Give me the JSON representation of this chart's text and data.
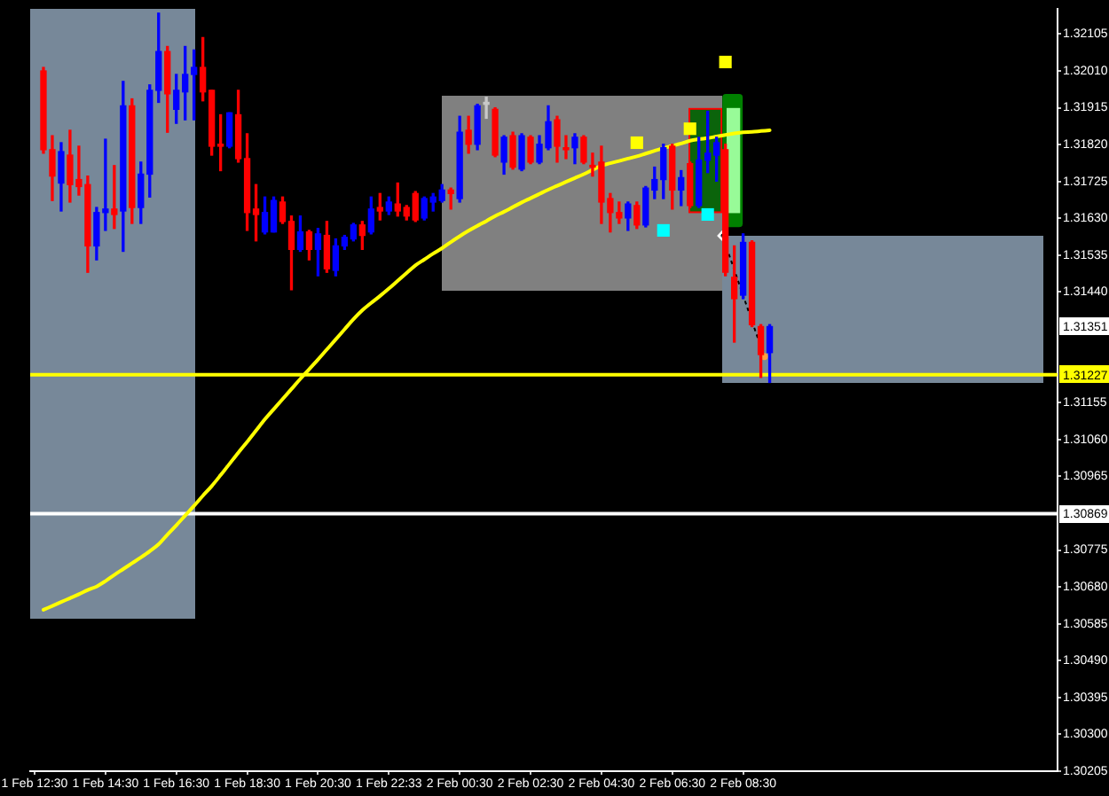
{
  "chart_data": {
    "type": "candlestick",
    "categories": [
      "1 Feb 12:30",
      null,
      null,
      null,
      null,
      null,
      null,
      null,
      "1 Feb 14:30",
      null,
      null,
      null,
      null,
      null,
      null,
      null,
      "1 Feb 16:30",
      null,
      null,
      null,
      null,
      null,
      null,
      null,
      "1 Feb 18:30",
      null,
      null,
      null,
      null,
      null,
      null,
      null,
      "1 Feb 20:30",
      null,
      null,
      null,
      null,
      null,
      null,
      null,
      "1 Feb 22:33",
      null,
      null,
      null,
      null,
      null,
      null,
      null,
      "2 Feb 00:30",
      null,
      null,
      null,
      null,
      null,
      null,
      null,
      "2 Feb 02:30",
      null,
      null,
      null,
      null,
      null,
      null,
      null,
      "2 Feb 04:30",
      null,
      null,
      null,
      null,
      null,
      null,
      null,
      "2 Feb 06:30",
      null,
      null,
      null,
      null,
      null,
      null,
      null,
      "2 Feb 08:30",
      null,
      null,
      null,
      null,
      null,
      null,
      null,
      null,
      null,
      null,
      null,
      null,
      null,
      null,
      null,
      null,
      null,
      null,
      null,
      null,
      null,
      null,
      null,
      null,
      null,
      null,
      null,
      null,
      null,
      null,
      null,
      null,
      null,
      null,
      null
    ],
    "ohlc": [
      null,
      [
        1.3201,
        1.32019,
        1.31798,
        1.31807
      ],
      [
        1.31807,
        1.31843,
        1.31676,
        1.31739
      ],
      [
        1.31721,
        1.31825,
        1.31649,
        1.31802
      ],
      [
        1.31793,
        1.31857,
        1.31672,
        1.31717
      ],
      [
        1.3173,
        1.31816,
        1.3169,
        1.31712
      ],
      [
        1.31717,
        1.31739,
        1.31491,
        1.31559
      ],
      [
        1.31559,
        1.31658,
        1.31523,
        1.31645
      ],
      [
        1.31645,
        1.31834,
        1.31599,
        1.31654
      ],
      [
        1.31654,
        1.31766,
        1.31604,
        1.3164
      ],
      [
        1.31649,
        1.31983,
        1.31545,
        1.3192
      ],
      [
        1.3192,
        1.31938,
        1.31617,
        1.31658
      ],
      [
        1.31658,
        1.31775,
        1.31617,
        1.31744
      ],
      [
        1.31744,
        1.31974,
        1.31685,
        1.3196
      ],
      [
        1.3196,
        1.32159,
        1.31929,
        1.3206
      ],
      [
        1.3206,
        1.32073,
        1.31852,
        1.31951
      ],
      [
        1.31911,
        1.32001,
        1.31875,
        1.3196
      ],
      [
        1.31956,
        1.32073,
        1.31884,
        1.32001
      ],
      [
        1.32001,
        1.32064,
        1.31884,
        1.32019
      ],
      [
        1.32019,
        1.32096,
        1.31933,
        1.31956
      ],
      [
        1.3196,
        1.3196,
        1.31793,
        1.31816
      ],
      [
        1.31821,
        1.31897,
        1.31753,
        1.31816
      ],
      [
        1.31816,
        1.31902,
        1.31812,
        1.31902
      ],
      [
        1.31897,
        1.3196,
        1.31775,
        1.31784
      ],
      [
        1.31784,
        1.31848,
        1.31599,
        1.31645
      ],
      [
        1.31654,
        1.31717,
        1.31572,
        1.3164
      ],
      [
        1.31595,
        1.31685,
        1.3159,
        1.31645
      ],
      [
        1.31595,
        1.31685,
        1.31595,
        1.31676
      ],
      [
        1.31672,
        1.31685,
        1.31617,
        1.31622
      ],
      [
        1.31622,
        1.31636,
        1.31446,
        1.3155
      ],
      [
        1.3155,
        1.31636,
        1.31545,
        1.31595
      ],
      [
        1.31595,
        1.31599,
        1.31523,
        1.3155
      ],
      [
        1.3155,
        1.31604,
        1.31482,
        1.3159
      ],
      [
        1.31586,
        1.31622,
        1.31491,
        1.315
      ],
      [
        1.31496,
        1.31577,
        1.31482,
        1.31559
      ],
      [
        1.31559,
        1.31586,
        1.3155,
        1.31581
      ],
      [
        1.31577,
        1.31617,
        1.31572,
        1.31613
      ],
      [
        1.31613,
        1.31622,
        1.3155,
        1.31586
      ],
      [
        1.31595,
        1.31685,
        1.3159,
        1.31654
      ],
      [
        1.31658,
        1.31694,
        1.31626,
        1.31649
      ],
      [
        1.31649,
        1.31685,
        1.3164,
        1.31672
      ],
      [
        1.31667,
        1.31721,
        1.31636,
        1.31649
      ],
      [
        1.31658,
        1.31663,
        1.31626,
        1.31636
      ],
      [
        1.31694,
        1.31699,
        1.31622,
        1.31626
      ],
      [
        1.31631,
        1.31685,
        1.31626,
        1.31681
      ],
      [
        1.31672,
        1.31694,
        1.31649,
        1.31685
      ],
      [
        1.31676,
        1.31717,
        1.31672,
        1.31703
      ],
      [
        1.31703,
        1.31708,
        1.31654,
        1.31694
      ],
      [
        1.31681,
        1.31893,
        1.31672,
        1.31852
      ],
      [
        1.31857,
        1.31893,
        1.31798,
        1.31821
      ],
      [
        1.31821,
        1.31924,
        1.31807,
        1.3192
      ],
      [
        1.31924,
        1.31942,
        1.31888,
        1.31929
      ],
      [
        1.31911,
        1.31915,
        1.31789,
        1.31793
      ],
      [
        1.31775,
        1.31843,
        1.31744,
        1.31839
      ],
      [
        1.31843,
        1.31852,
        1.31757,
        1.31762
      ],
      [
        1.31757,
        1.31848,
        1.31753,
        1.31843
      ],
      [
        1.31839,
        1.31843,
        1.31771,
        1.31775
      ],
      [
        1.31775,
        1.31843,
        1.31771,
        1.31821
      ],
      [
        1.31812,
        1.3192,
        1.31807,
        1.31879
      ],
      [
        1.31884,
        1.31893,
        1.31775,
        1.31816
      ],
      [
        1.31812,
        1.31843,
        1.31784,
        1.31807
      ],
      [
        1.31812,
        1.31848,
        1.31771,
        1.31839
      ],
      [
        1.31839,
        1.31843,
        1.31771,
        1.31775
      ],
      [
        1.31766,
        1.31798,
        1.31739,
        1.31762
      ],
      [
        1.31775,
        1.31816,
        1.31617,
        1.31672
      ],
      [
        1.31681,
        1.31694,
        1.31595,
        1.31645
      ],
      [
        1.31645,
        1.31672,
        1.31617,
        1.31631
      ],
      [
        1.31631,
        1.31672,
        1.31599,
        1.31667
      ],
      [
        1.31663,
        1.31672,
        1.31604,
        1.31613
      ],
      [
        1.31613,
        1.31712,
        1.31608,
        1.31708
      ],
      [
        1.31703,
        1.31762,
        1.31681,
        1.3173
      ],
      [
        1.3173,
        1.31821,
        1.31681,
        1.31812
      ],
      [
        1.31816,
        1.31821,
        1.31654,
        1.31703
      ],
      [
        1.31703,
        1.31753,
        1.31663,
        1.31735
      ],
      [
        1.31771,
        1.31775,
        1.31658,
        1.31663
      ],
      [
        1.31663,
        1.31839,
        1.31658,
        1.3178
      ],
      [
        1.3178,
        1.31906,
        1.31748,
        1.31798
      ],
      [
        1.31793,
        1.31839,
        1.31726,
        1.31825
      ],
      [
        1.31807,
        1.31821,
        1.31482,
        1.31491
      ],
      [
        1.31478,
        1.31559,
        1.31311,
        1.31423
      ],
      [
        1.31432,
        1.3159,
        1.31423,
        1.31568
      ],
      [
        1.31568,
        1.31572,
        1.31351,
        1.31356
      ],
      [
        1.31351,
        1.31356,
        1.3122,
        1.31279
      ],
      [
        1.31284,
        1.31356,
        1.31207,
        1.31351
      ],
      null,
      null,
      null,
      null,
      null,
      null,
      null,
      null,
      null,
      null,
      null,
      null,
      null,
      null,
      null,
      null,
      null,
      null,
      null,
      null,
      null,
      null,
      null,
      null,
      null,
      null,
      null,
      null,
      null,
      null,
      null,
      null
    ],
    "colors": [
      null,
      "#ff0000",
      "#ff0000",
      "#0000ff",
      "#ff0000",
      "#ff0000",
      "#ff0000",
      "#0000ff",
      "#0000ff",
      "#ff0000",
      "#0000ff",
      "#ff0000",
      "#0000ff",
      "#0000ff",
      "#0000ff",
      "#ff0000",
      "#0000ff",
      "#0000ff",
      "#0000ff",
      "#ff0000",
      "#ff0000",
      "#ff0000",
      "#0000ff",
      "#ff0000",
      "#ff0000",
      "#ff0000",
      "#0000ff",
      "#0000ff",
      "#ff0000",
      "#ff0000",
      "#0000ff",
      "#ff0000",
      "#0000ff",
      "#ff0000",
      "#0000ff",
      "#0000ff",
      "#0000ff",
      "#ff0000",
      "#0000ff",
      "#ff0000",
      "#0000ff",
      "#ff0000",
      "#ff0000",
      "#ff0000",
      "#0000ff",
      "#0000ff",
      "#0000ff",
      "#ff0000",
      "#0000ff",
      "#ff0000",
      "#0000ff",
      "#c8c8c8",
      "#ff0000",
      "#0000ff",
      "#ff0000",
      "#0000ff",
      "#ff0000",
      "#0000ff",
      "#0000ff",
      "#ff0000",
      "#ff0000",
      "#0000ff",
      "#ff0000",
      "#ff0000",
      "#ff0000",
      "#ff0000",
      "#ff0000",
      "#0000ff",
      "#ff0000",
      "#0000ff",
      "#0000ff",
      "#0000ff",
      "#ff0000",
      "#0000ff",
      "#ff0000",
      "#0000ff",
      "#0000ff",
      "#0000ff",
      "#ff0000",
      "#ff0000",
      "#0000ff",
      "#ff0000",
      "#ff0000",
      "#0000ff",
      null,
      null,
      null,
      null,
      null,
      null,
      null,
      null,
      null,
      null,
      null,
      null,
      null,
      null,
      null,
      null,
      null,
      null,
      null,
      null,
      null,
      null,
      null,
      null,
      null,
      null,
      null,
      null,
      null,
      null,
      null,
      null
    ],
    "series": [
      {
        "type": "line",
        "values": [
          null,
          1.30621,
          1.30631,
          1.30641,
          1.30651,
          1.30661,
          1.30672,
          1.30681,
          1.30695,
          1.30711,
          1.30726,
          1.30741,
          1.30756,
          1.30772,
          1.3079,
          1.30815,
          1.30839,
          1.30864,
          1.30889,
          1.30915,
          1.3094,
          1.30968,
          1.30997,
          1.31026,
          1.31054,
          1.31083,
          1.31112,
          1.31138,
          1.31164,
          1.3119,
          1.31216,
          1.31241,
          1.31266,
          1.31292,
          1.31318,
          1.31344,
          1.3137,
          1.31393,
          1.31412,
          1.3143,
          1.31449,
          1.31469,
          1.31489,
          1.31509,
          1.31524,
          1.31539,
          1.31553,
          1.31569,
          1.31584,
          1.31598,
          1.31611,
          1.31623,
          1.31636,
          1.31647,
          1.31659,
          1.31671,
          1.31682,
          1.31693,
          1.31704,
          1.31714,
          1.31724,
          1.31734,
          1.31744,
          1.31755,
          1.31766,
          1.31772,
          1.31778,
          1.31784,
          1.3179,
          1.31797,
          1.31804,
          1.31811,
          1.31817,
          1.31823,
          1.3183,
          1.31834,
          1.31837,
          1.31841,
          1.31845,
          1.31849,
          1.31852,
          1.31853,
          1.31855,
          1.31857,
          null,
          null,
          null,
          null,
          null,
          null,
          null,
          null,
          null,
          null,
          null,
          null,
          null,
          null,
          null,
          null,
          null,
          null,
          null,
          null,
          null,
          null,
          null,
          null,
          null,
          null,
          null,
          null,
          null,
          null,
          null,
          null
        ],
        "color": "#ffff00",
        "marker": "none"
      },
      {
        "type": "scatter",
        "values": [
          null,
          null,
          null,
          null,
          null,
          null,
          null,
          null,
          null,
          null,
          null,
          null,
          null,
          null,
          null,
          null,
          null,
          null,
          null,
          null,
          null,
          null,
          null,
          null,
          null,
          null,
          null,
          null,
          null,
          null,
          null,
          null,
          null,
          null,
          null,
          null,
          null,
          null,
          null,
          null,
          null,
          null,
          null,
          null,
          null,
          null,
          null,
          null,
          null,
          null,
          null,
          null,
          null,
          null,
          null,
          null,
          null,
          null,
          null,
          null,
          null,
          null,
          null,
          null,
          null,
          null,
          null,
          null,
          1.31825,
          null,
          null,
          null,
          null,
          null,
          1.31861,
          null,
          null,
          null,
          1.32033,
          null,
          null,
          null,
          null,
          null,
          null,
          null,
          null,
          null,
          null,
          null,
          null,
          null,
          null,
          null,
          null,
          null,
          null,
          null,
          null,
          null,
          null,
          null,
          null,
          null,
          null,
          null,
          null,
          null,
          null,
          null,
          null,
          null,
          null,
          null,
          null,
          null
        ],
        "color": "#ffff00",
        "marker": "square"
      },
      {
        "type": "scatter",
        "values": [
          null,
          null,
          null,
          null,
          null,
          null,
          null,
          null,
          null,
          null,
          null,
          null,
          null,
          null,
          null,
          null,
          null,
          null,
          null,
          null,
          null,
          null,
          null,
          null,
          null,
          null,
          null,
          null,
          null,
          null,
          null,
          null,
          null,
          null,
          null,
          null,
          null,
          null,
          null,
          null,
          null,
          null,
          null,
          null,
          null,
          null,
          null,
          null,
          null,
          null,
          null,
          null,
          null,
          null,
          null,
          null,
          null,
          null,
          null,
          null,
          null,
          null,
          null,
          null,
          null,
          null,
          null,
          null,
          null,
          null,
          null,
          1.31599,
          null,
          null,
          null,
          null,
          1.3164,
          null,
          null,
          null,
          null,
          null,
          null,
          null,
          null,
          null,
          null,
          null,
          null,
          null,
          null,
          null,
          null,
          null,
          null,
          null,
          null,
          null,
          null,
          null,
          null,
          null,
          null,
          null,
          null,
          null,
          null,
          null,
          null,
          null,
          null,
          null,
          null,
          null,
          null,
          null
        ],
        "color": "#00ffff",
        "marker": "square"
      }
    ],
    "ylim": [
      1.30205,
      1.3217
    ],
    "yticks": [
      1.32105,
      {
        "value": 1.3201,
        "label": "1.32010"
      },
      1.31915,
      {
        "value": 1.3182,
        "label": "1.31820"
      },
      1.31725,
      {
        "value": 1.3163,
        "label": "1.31630"
      },
      1.31535,
      {
        "value": 1.3144,
        "label": "1.31440"
      },
      1.31155,
      {
        "value": 1.3106,
        "label": "1.31060"
      },
      1.30965,
      1.30775,
      {
        "value": 1.3068,
        "label": "1.30680"
      },
      1.30585,
      {
        "value": 1.3049,
        "label": "1.30490"
      },
      1.30395,
      {
        "value": 1.303,
        "label": "1.30300"
      },
      1.30205
    ],
    "ref_lines": [
      {
        "axis": "y",
        "value": 1.31227,
        "label": "1.31227",
        "color": "#ffff00"
      },
      {
        "axis": "y",
        "value": 1.30869,
        "label": "1.30869",
        "color": "#ffffff"
      }
    ],
    "annotations": [
      "1.31351"
    ],
    "legend": false,
    "grid": false
  }
}
